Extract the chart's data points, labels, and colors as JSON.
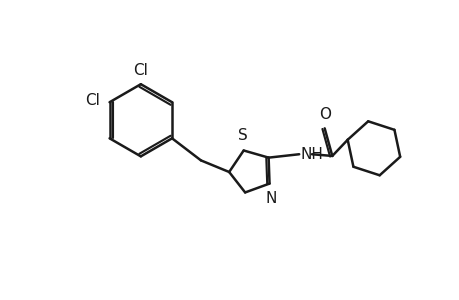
{
  "bg_color": "#ffffff",
  "line_color": "#1a1a1a",
  "line_width": 1.8,
  "font_size": 11,
  "figsize": [
    4.6,
    3.0
  ],
  "dpi": 100,
  "atoms": {
    "Cl1_label": "Cl",
    "Cl2_label": "Cl",
    "S_label": "S",
    "N_label": "N",
    "NH_label": "NH",
    "O_label": "O"
  }
}
